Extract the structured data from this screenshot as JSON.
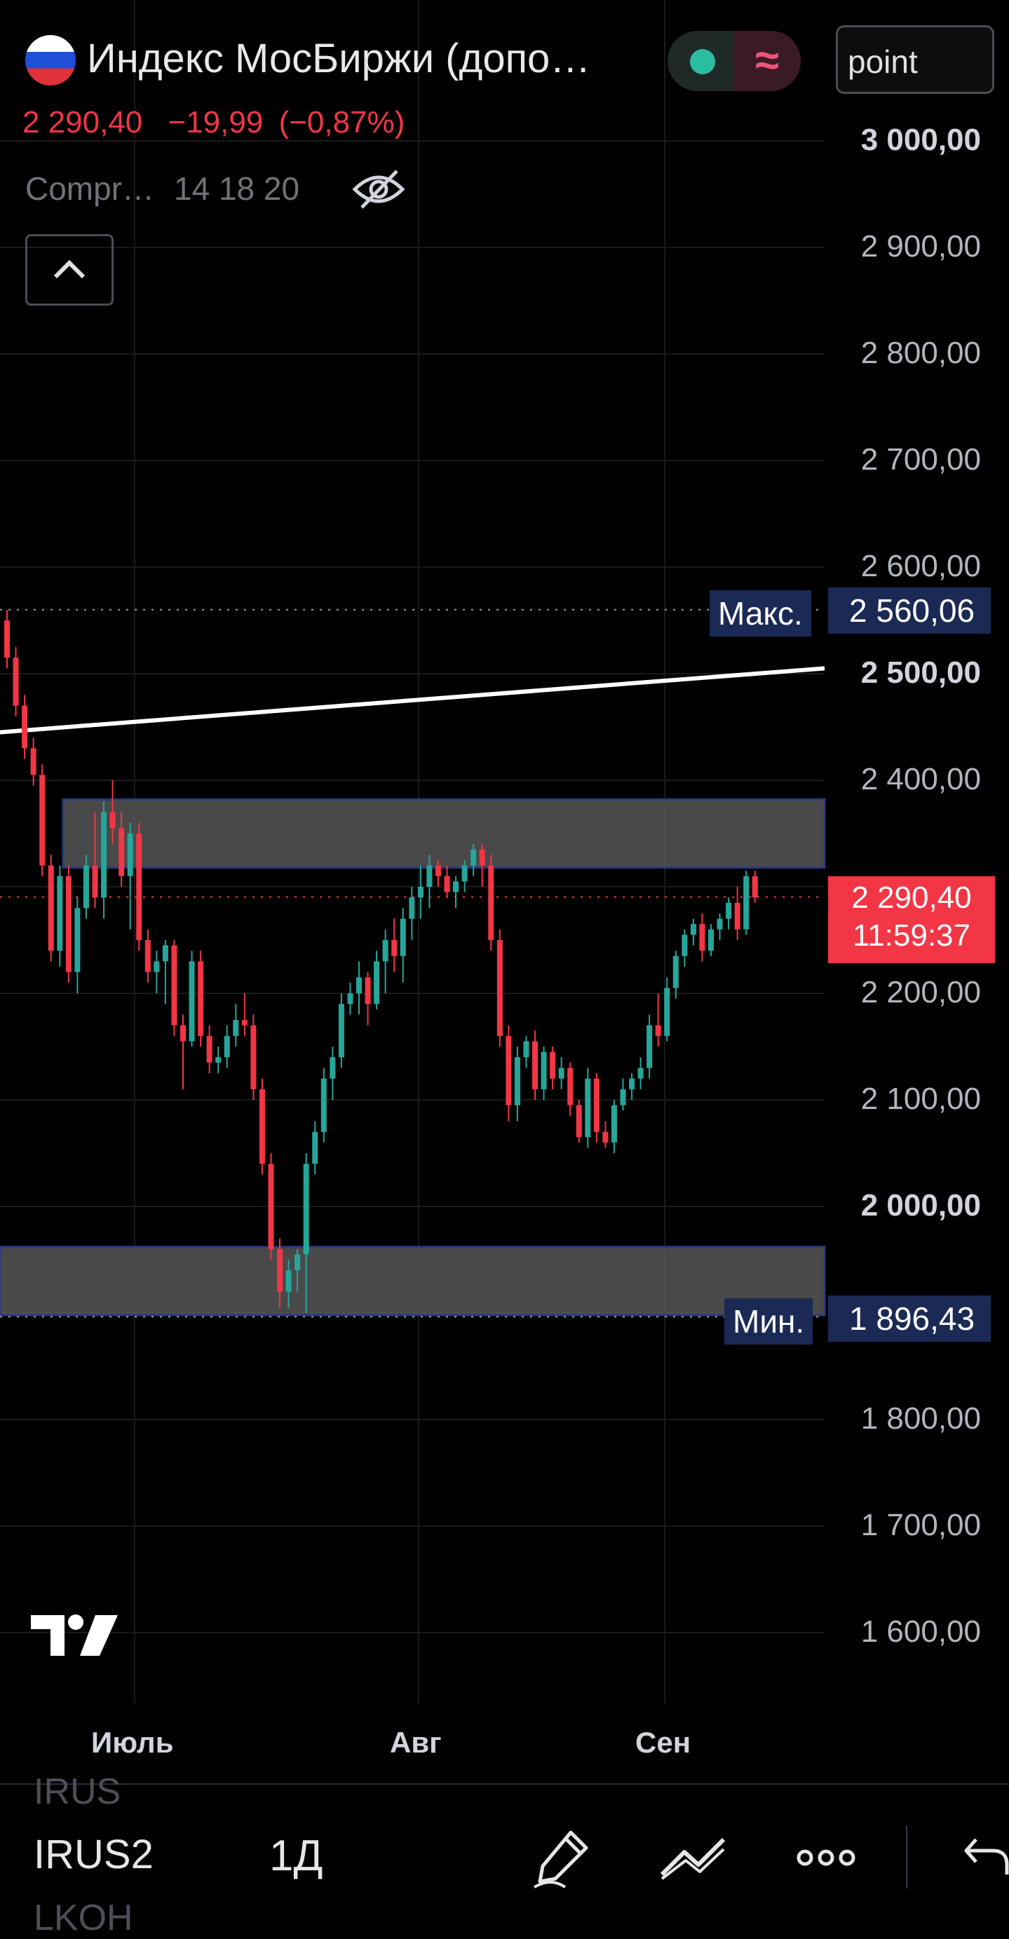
{
  "header": {
    "title": "Индекс МосБиржи (допо…",
    "last_price": "2 290,40",
    "change_abs": "−19,99",
    "change_pct": "(−0,87%)",
    "meta_label": "Compr…",
    "meta_values": "14 18 20",
    "point_field": "point"
  },
  "price_axis": {
    "labels": [
      "3 000,00",
      "2 900,00",
      "2 800,00",
      "2 700,00",
      "2 600,00",
      "2 500,00",
      "2 400,00",
      "2 200,00",
      "2 100,00",
      "2 000,00",
      "1 800,00",
      "1 700,00",
      "1 600,00"
    ],
    "bold": [
      "3 000,00",
      "2 500,00",
      "2 000,00"
    ]
  },
  "markers": {
    "max_label": "Макс.",
    "max_value": "2 560,06",
    "min_label": "Мин.",
    "min_value": "1 896,43",
    "current_price": "2 290,40",
    "countdown": "11:59:37"
  },
  "time_axis": {
    "labels": [
      "Июль",
      "Авг",
      "Сен"
    ]
  },
  "bottom": {
    "prev_symbol": "IRUS",
    "symbol": "IRUS2",
    "next_symbol": "LKOH",
    "timeframe": "1Д"
  },
  "colors": {
    "up": "#26a69a",
    "down": "#f23645",
    "zone": "#5d5d5d",
    "zone_border": "#2a3a80",
    "tag_bg": "#1b2a55",
    "background": "#000000"
  },
  "icons": [
    "russia-flag-icon",
    "eye-off-icon",
    "chevron-up-icon",
    "tradingview-logo-icon",
    "pencil-icon",
    "trend-line-icon",
    "more-icon",
    "undo-icon"
  ],
  "chart_data": {
    "type": "candlestick",
    "y_range": [
      1560,
      3030
    ],
    "max": 2560.06,
    "min": 1896.43,
    "last": 2290.4,
    "zones": [
      [
        2318,
        2382
      ],
      [
        1898,
        1962
      ]
    ],
    "trend_line": [
      [
        0,
        2445
      ],
      [
        1,
        2505
      ]
    ],
    "ohlc": [
      [
        2550,
        2560,
        2505,
        2515
      ],
      [
        2515,
        2525,
        2460,
        2470
      ],
      [
        2470,
        2480,
        2420,
        2430
      ],
      [
        2430,
        2440,
        2395,
        2405
      ],
      [
        2405,
        2415,
        2310,
        2320
      ],
      [
        2320,
        2330,
        2230,
        2240
      ],
      [
        2240,
        2320,
        2225,
        2310
      ],
      [
        2310,
        2320,
        2210,
        2220
      ],
      [
        2220,
        2290,
        2200,
        2280
      ],
      [
        2280,
        2330,
        2270,
        2320
      ],
      [
        2320,
        2370,
        2280,
        2290
      ],
      [
        2290,
        2380,
        2270,
        2370
      ],
      [
        2370,
        2400,
        2340,
        2355
      ],
      [
        2355,
        2370,
        2300,
        2310
      ],
      [
        2310,
        2360,
        2260,
        2350
      ],
      [
        2350,
        2360,
        2240,
        2250
      ],
      [
        2250,
        2260,
        2210,
        2220
      ],
      [
        2220,
        2240,
        2200,
        2230
      ],
      [
        2230,
        2250,
        2190,
        2245
      ],
      [
        2245,
        2250,
        2160,
        2170
      ],
      [
        2170,
        2180,
        2110,
        2155
      ],
      [
        2155,
        2240,
        2150,
        2230
      ],
      [
        2230,
        2240,
        2150,
        2160
      ],
      [
        2160,
        2170,
        2125,
        2135
      ],
      [
        2135,
        2150,
        2125,
        2140
      ],
      [
        2140,
        2170,
        2130,
        2160
      ],
      [
        2160,
        2190,
        2150,
        2175
      ],
      [
        2175,
        2200,
        2160,
        2170
      ],
      [
        2170,
        2180,
        2100,
        2110
      ],
      [
        2110,
        2120,
        2030,
        2040
      ],
      [
        2040,
        2050,
        1950,
        1960
      ],
      [
        1960,
        1970,
        1905,
        1920
      ],
      [
        1920,
        1950,
        1905,
        1940
      ],
      [
        1940,
        1960,
        1920,
        1955
      ],
      [
        1955,
        2050,
        1900,
        2040
      ],
      [
        2040,
        2080,
        2030,
        2070
      ],
      [
        2070,
        2130,
        2060,
        2120
      ],
      [
        2120,
        2150,
        2100,
        2140
      ],
      [
        2140,
        2200,
        2130,
        2190
      ],
      [
        2190,
        2210,
        2180,
        2200
      ],
      [
        2200,
        2230,
        2180,
        2215
      ],
      [
        2215,
        2220,
        2170,
        2190
      ],
      [
        2190,
        2240,
        2185,
        2230
      ],
      [
        2230,
        2260,
        2200,
        2250
      ],
      [
        2250,
        2270,
        2220,
        2235
      ],
      [
        2235,
        2280,
        2210,
        2270
      ],
      [
        2270,
        2300,
        2250,
        2290
      ],
      [
        2290,
        2320,
        2270,
        2300
      ],
      [
        2300,
        2330,
        2280,
        2320
      ],
      [
        2320,
        2325,
        2300,
        2310
      ],
      [
        2310,
        2320,
        2290,
        2295
      ],
      [
        2295,
        2310,
        2280,
        2305
      ],
      [
        2305,
        2325,
        2295,
        2320
      ],
      [
        2320,
        2340,
        2310,
        2335
      ],
      [
        2335,
        2340,
        2300,
        2320
      ],
      [
        2320,
        2330,
        2240,
        2250
      ],
      [
        2250,
        2260,
        2150,
        2160
      ],
      [
        2160,
        2170,
        2080,
        2095
      ],
      [
        2095,
        2150,
        2080,
        2140
      ],
      [
        2140,
        2160,
        2130,
        2155
      ],
      [
        2155,
        2165,
        2100,
        2110
      ],
      [
        2110,
        2150,
        2100,
        2145
      ],
      [
        2145,
        2150,
        2110,
        2120
      ],
      [
        2120,
        2140,
        2110,
        2130
      ],
      [
        2130,
        2135,
        2085,
        2095
      ],
      [
        2095,
        2100,
        2060,
        2065
      ],
      [
        2065,
        2130,
        2055,
        2120
      ],
      [
        2120,
        2125,
        2060,
        2070
      ],
      [
        2070,
        2080,
        2055,
        2060
      ],
      [
        2060,
        2100,
        2050,
        2095
      ],
      [
        2095,
        2120,
        2090,
        2110
      ],
      [
        2110,
        2125,
        2100,
        2120
      ],
      [
        2120,
        2140,
        2110,
        2130
      ],
      [
        2130,
        2180,
        2120,
        2170
      ],
      [
        2170,
        2200,
        2150,
        2160
      ],
      [
        2160,
        2215,
        2155,
        2205
      ],
      [
        2205,
        2240,
        2195,
        2235
      ],
      [
        2235,
        2260,
        2225,
        2255
      ],
      [
        2255,
        2270,
        2245,
        2265
      ],
      [
        2265,
        2275,
        2230,
        2240
      ],
      [
        2240,
        2265,
        2235,
        2260
      ],
      [
        2260,
        2275,
        2250,
        2270
      ],
      [
        2270,
        2290,
        2260,
        2285
      ],
      [
        2285,
        2300,
        2250,
        2260
      ],
      [
        2260,
        2315,
        2255,
        2310
      ],
      [
        2310,
        2315,
        2285,
        2290
      ]
    ]
  }
}
